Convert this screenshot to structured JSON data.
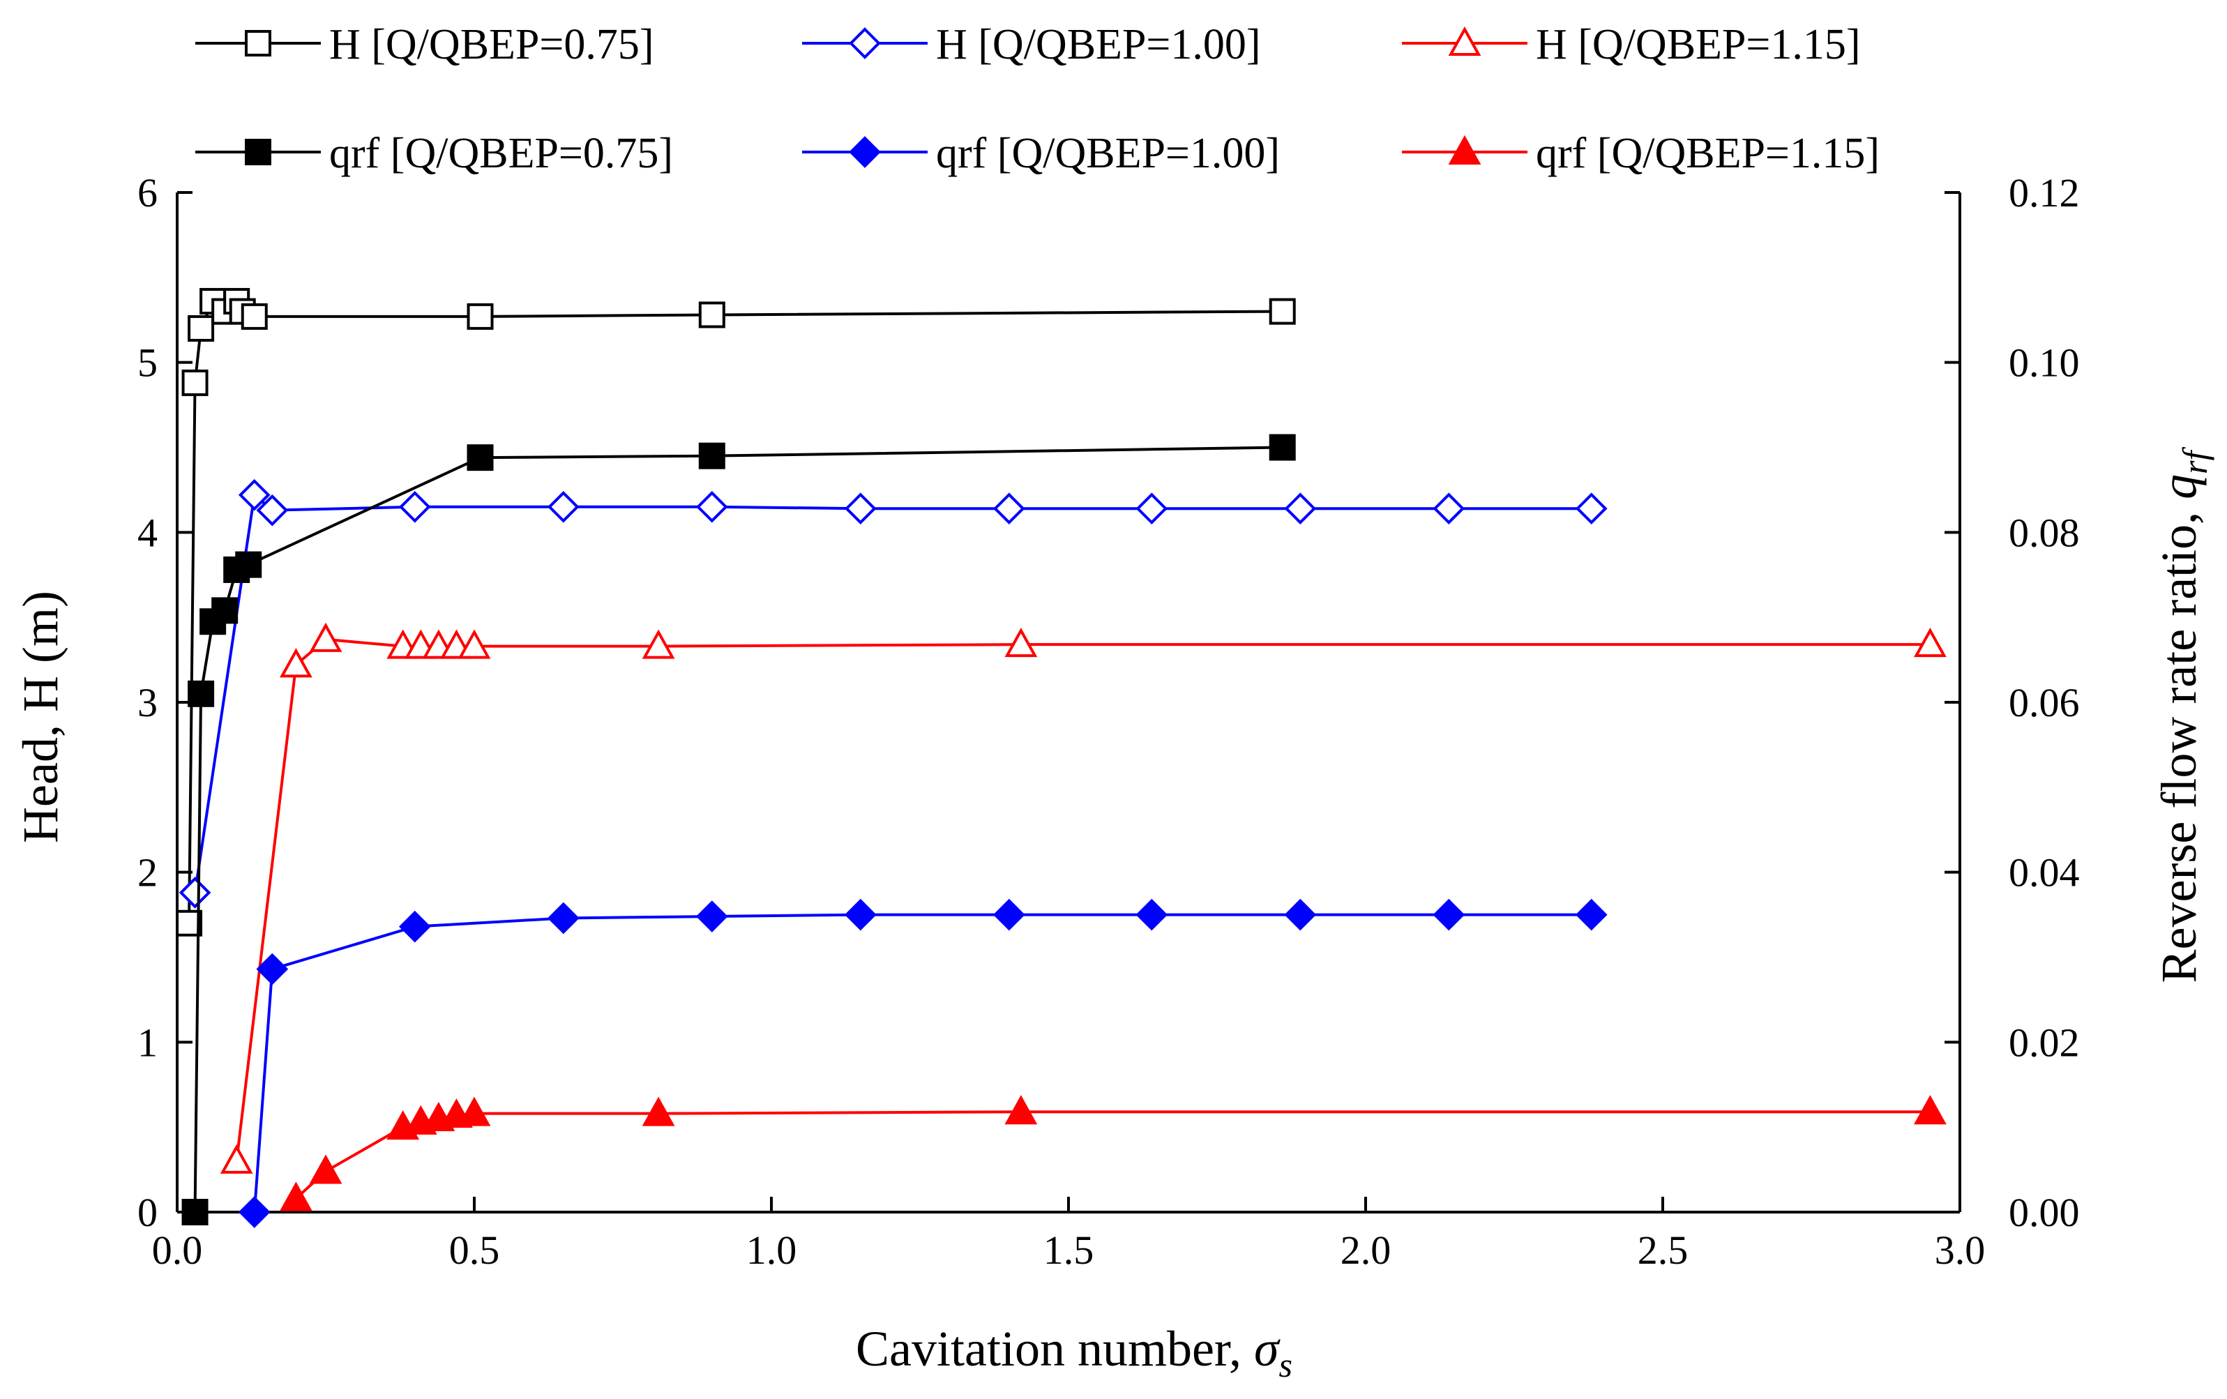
{
  "chart_data": {
    "type": "line",
    "xlabel": "Cavitation number, ",
    "xlabel_symbol": "σ",
    "xlabel_sub": "s",
    "ylabel": "Head, H (m)",
    "y2label": "Reverse flow rate ratio, ",
    "y2label_symbol": "q",
    "y2label_sub": "rf",
    "xlim": [
      0,
      3.0
    ],
    "ylim": [
      0,
      6
    ],
    "y2lim": [
      0,
      0.12
    ],
    "xticks": [
      "0.0",
      "0.5",
      "1.0",
      "1.5",
      "2.0",
      "2.5",
      "3.0"
    ],
    "yticks": [
      "0",
      "1",
      "2",
      "3",
      "4",
      "5",
      "6"
    ],
    "y2ticks": [
      "0.00",
      "0.02",
      "0.04",
      "0.06",
      "0.08",
      "0.10",
      "0.12"
    ],
    "legend_placement": "top",
    "series": [
      {
        "name": "H [Q/QBEP=0.75]",
        "axis": "left",
        "color": "#000000",
        "marker": "square",
        "filled": false,
        "x": [
          0.02,
          0.03,
          0.04,
          0.06,
          0.08,
          0.1,
          0.11,
          0.13,
          0.51,
          0.9,
          1.86
        ],
        "y": [
          1.7,
          4.88,
          5.2,
          5.36,
          5.3,
          5.36,
          5.3,
          5.27,
          5.27,
          5.28,
          5.3
        ]
      },
      {
        "name": "H [Q/QBEP=1.00]",
        "axis": "left",
        "color": "#0000ff",
        "marker": "diamond",
        "filled": false,
        "x": [
          0.03,
          0.13,
          0.16,
          0.4,
          0.65,
          0.9,
          1.15,
          1.4,
          1.64,
          1.89,
          2.14,
          2.38
        ],
        "y": [
          1.88,
          4.22,
          4.13,
          4.15,
          4.15,
          4.15,
          4.14,
          4.14,
          4.14,
          4.14,
          4.14,
          4.14
        ]
      },
      {
        "name": "H [Q/QBEP=1.15]",
        "axis": "left",
        "color": "#ff0000",
        "marker": "triangle",
        "filled": false,
        "x": [
          0.1,
          0.2,
          0.25,
          0.38,
          0.41,
          0.44,
          0.47,
          0.5,
          0.81,
          1.42,
          2.95
        ],
        "y": [
          0.3,
          3.22,
          3.37,
          3.33,
          3.33,
          3.33,
          3.33,
          3.33,
          3.33,
          3.34,
          3.34
        ]
      },
      {
        "name": "qrf [Q/QBEP=0.75]",
        "axis": "right",
        "color": "#000000",
        "marker": "square",
        "filled": true,
        "x": [
          0.03,
          0.04,
          0.06,
          0.08,
          0.1,
          0.12,
          0.51,
          0.9,
          1.86
        ],
        "y": [
          0.0,
          0.061,
          0.0695,
          0.0708,
          0.0756,
          0.0762,
          0.0888,
          0.089,
          0.09
        ]
      },
      {
        "name": "qrf [Q/QBEP=1.00]",
        "axis": "right",
        "color": "#0000ff",
        "marker": "diamond",
        "filled": true,
        "x": [
          0.13,
          0.16,
          0.4,
          0.65,
          0.9,
          1.15,
          1.4,
          1.64,
          1.89,
          2.14,
          2.38
        ],
        "y": [
          0.0,
          0.0286,
          0.0336,
          0.0346,
          0.0348,
          0.035,
          0.035,
          0.035,
          0.035,
          0.035,
          0.035
        ]
      },
      {
        "name": "qrf [Q/QBEP=1.15]",
        "axis": "right",
        "color": "#ff0000",
        "marker": "triangle",
        "filled": true,
        "x": [
          0.2,
          0.25,
          0.38,
          0.41,
          0.44,
          0.47,
          0.5,
          0.81,
          1.42,
          2.95
        ],
        "y": [
          0.0016,
          0.0048,
          0.01,
          0.0106,
          0.011,
          0.0114,
          0.0116,
          0.0116,
          0.0118,
          0.0118
        ]
      }
    ]
  }
}
